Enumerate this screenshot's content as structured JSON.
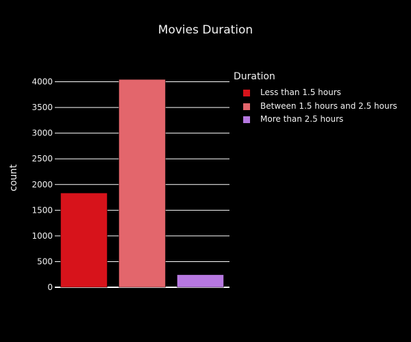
{
  "chart_data": {
    "type": "bar",
    "title": "Movies Duration",
    "xlabel": "",
    "ylabel": "count",
    "categories": [
      "Less than 1.5 hours",
      "Between 1.5 hours and 2.5 hours",
      "More than 2.5 hours"
    ],
    "values": [
      1835,
      4045,
      245
    ],
    "colors": [
      "#d7131b",
      "#e3666c",
      "#b678e0"
    ],
    "ylim": [
      0,
      4000
    ],
    "yticks": [
      0,
      500,
      1000,
      1500,
      2000,
      2500,
      3000,
      3500,
      4000
    ],
    "grid": true,
    "legend_title": "Duration",
    "legend_position": "top-right",
    "background": "#000000",
    "text_color": "#f2f2f2",
    "grid_color": "#ffffff"
  }
}
